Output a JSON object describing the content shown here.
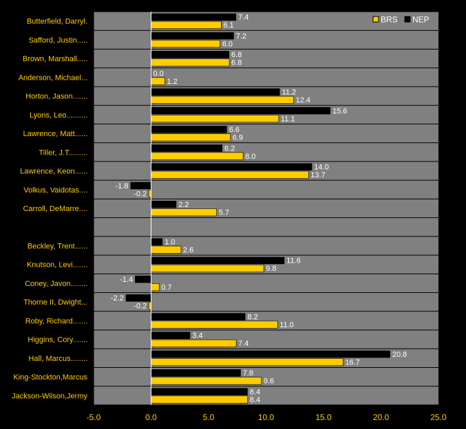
{
  "chart_data": {
    "type": "bar",
    "orientation": "horizontal",
    "categories": [
      "Butterfield, Darryl.",
      "Safford, Justin.....",
      "Brown, Marshall.....",
      "Anderson, Michael...",
      "Horton, Jason.......",
      "Lyons, Leo..........",
      "Lawrence, Matt......",
      "Tiller, J.T.........",
      "Lawrence, Keon......",
      "Volkus, Vaidotas....",
      "Carroll, DeMarre....",
      "",
      "Beckley, Trent......",
      "Knutson, Levi.......",
      "Coney, Javon........",
      "Thorne II, Dwight...",
      "Roby, Richard.......",
      "Higgins, Cory.......",
      "Hall, Marcus........",
      "King-Stockton,Marcus",
      "Jackson-Wilson,Jermy"
    ],
    "series": [
      {
        "name": "NEP",
        "color": "#000000",
        "values": [
          7.4,
          7.2,
          6.8,
          0.0,
          11.2,
          15.6,
          6.6,
          6.2,
          14.0,
          -1.8,
          2.2,
          null,
          1.0,
          11.6,
          -1.4,
          -2.2,
          8.2,
          3.4,
          20.8,
          7.8,
          8.4
        ],
        "labels": [
          "7.4",
          "7.2",
          "6.8",
          "0.0",
          "11.2",
          "15.6",
          "6.6",
          "6.2",
          "14.0",
          "-1.8",
          "2.2",
          "",
          "1.0",
          "11.6",
          "-1.4",
          "-2.2",
          "8.2",
          "3.4",
          "20.8",
          "7.8",
          "8.4"
        ]
      },
      {
        "name": "BRS",
        "color": "#FFCC00",
        "values": [
          6.1,
          6.0,
          6.8,
          1.2,
          12.4,
          11.1,
          6.9,
          8.0,
          13.7,
          -0.2,
          5.7,
          null,
          2.6,
          9.8,
          0.7,
          -0.2,
          11.0,
          7.4,
          16.7,
          9.6,
          8.4
        ],
        "labels": [
          "6.1",
          "6.0",
          "6.8",
          "1.2",
          "12.4",
          "11.1",
          "6.9",
          "8.0",
          "13.7",
          "-0.2",
          "5.7",
          "",
          "2.6",
          "9.8",
          "0.7",
          "-0.2",
          "11.0",
          "7.4",
          "16.7",
          "9.6",
          "8.4"
        ]
      }
    ],
    "xlim": [
      -5.0,
      25.0
    ],
    "xticks": [
      -5.0,
      0.0,
      5.0,
      10.0,
      15.0,
      20.0,
      25.0
    ],
    "xtick_labels": [
      "-5.0",
      "0.0",
      "5.0",
      "10.0",
      "15.0",
      "20.0",
      "25.0"
    ],
    "title": "",
    "xlabel": "",
    "ylabel": "",
    "grid": true,
    "legend": {
      "placement": "top-right",
      "order": [
        "BRS",
        "NEP"
      ]
    },
    "colors": {
      "background": "#000000",
      "plot_area": "#808080",
      "row_separator": "#000000",
      "zero_line": "#FFFFFF",
      "category_text": "#FFCC00",
      "value_text": "#FFFFFF",
      "tick_text": "#FFCC00",
      "legend_text": "#FFFFFF"
    }
  }
}
